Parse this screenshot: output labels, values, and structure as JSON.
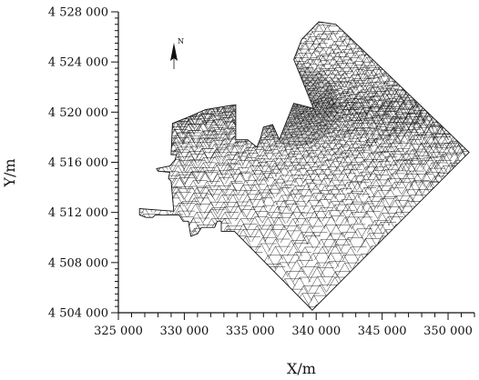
{
  "chart_data": {
    "type": "scatter",
    "title": "",
    "xlabel": "X/m",
    "ylabel": "Y/m",
    "xlim": [
      325000,
      352000
    ],
    "ylim": [
      4504000,
      4528000
    ],
    "x_ticks": [
      325000,
      330000,
      335000,
      340000,
      345000,
      350000
    ],
    "y_ticks": [
      4504000,
      4508000,
      4512000,
      4516000,
      4520000,
      4524000,
      4528000
    ],
    "x_tick_labels": [
      "325 000",
      "330 000",
      "335 000",
      "340 000",
      "345 000",
      "350 000"
    ],
    "y_tick_labels": [
      "4 504 000",
      "4 508 000",
      "4 512 000",
      "4 516 000",
      "4 520 000",
      "4 524 000",
      "4 528 000"
    ],
    "north_arrow_label": "N",
    "mesh_domain": [
      [
        338300,
        4524200
      ],
      [
        338900,
        4525800
      ],
      [
        340200,
        4527200
      ],
      [
        341500,
        4527000
      ],
      [
        342200,
        4526300
      ],
      [
        351600,
        4516800
      ],
      [
        339700,
        4504200
      ],
      [
        333800,
        4510500
      ],
      [
        332800,
        4510500
      ],
      [
        332800,
        4511300
      ],
      [
        332500,
        4511300
      ],
      [
        332300,
        4510800
      ],
      [
        331300,
        4510800
      ],
      [
        331000,
        4510300
      ],
      [
        330500,
        4510100
      ],
      [
        330300,
        4511300
      ],
      [
        329900,
        4511300
      ],
      [
        329600,
        4511800
      ],
      [
        327800,
        4511800
      ],
      [
        327600,
        4511600
      ],
      [
        327100,
        4511600
      ],
      [
        326600,
        4511800
      ],
      [
        326600,
        4512300
      ],
      [
        329200,
        4512100
      ],
      [
        329000,
        4514500
      ],
      [
        328800,
        4514700
      ],
      [
        328900,
        4515200
      ],
      [
        328000,
        4515300
      ],
      [
        327900,
        4515500
      ],
      [
        328900,
        4515700
      ],
      [
        329300,
        4516200
      ],
      [
        329400,
        4516600
      ],
      [
        329000,
        4516600
      ],
      [
        329100,
        4519100
      ],
      [
        330300,
        4519600
      ],
      [
        331600,
        4520200
      ],
      [
        333900,
        4520600
      ],
      [
        333900,
        4517800
      ],
      [
        334800,
        4517800
      ],
      [
        335500,
        4517200
      ],
      [
        335800,
        4518000
      ],
      [
        336000,
        4518800
      ],
      [
        336700,
        4519000
      ],
      [
        337200,
        4517800
      ],
      [
        337800,
        4519400
      ],
      [
        338300,
        4520700
      ],
      [
        339800,
        4520300
      ]
    ]
  }
}
